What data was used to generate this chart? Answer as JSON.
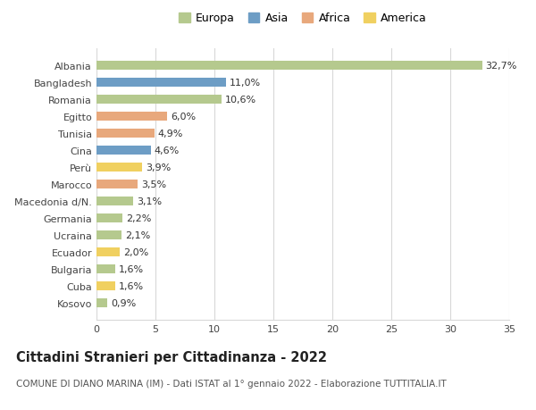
{
  "countries": [
    "Albania",
    "Bangladesh",
    "Romania",
    "Egitto",
    "Tunisia",
    "Cina",
    "Perù",
    "Marocco",
    "Macedonia d/N.",
    "Germania",
    "Ucraina",
    "Ecuador",
    "Bulgaria",
    "Cuba",
    "Kosovo"
  ],
  "values": [
    32.7,
    11.0,
    10.6,
    6.0,
    4.9,
    4.6,
    3.9,
    3.5,
    3.1,
    2.2,
    2.1,
    2.0,
    1.6,
    1.6,
    0.9
  ],
  "labels": [
    "32,7%",
    "11,0%",
    "10,6%",
    "6,0%",
    "4,9%",
    "4,6%",
    "3,9%",
    "3,5%",
    "3,1%",
    "2,2%",
    "2,1%",
    "2,0%",
    "1,6%",
    "1,6%",
    "0,9%"
  ],
  "continents": [
    "Europa",
    "Asia",
    "Europa",
    "Africa",
    "Africa",
    "Asia",
    "America",
    "Africa",
    "Europa",
    "Europa",
    "Europa",
    "America",
    "Europa",
    "America",
    "Europa"
  ],
  "colors": {
    "Europa": "#b5c98e",
    "Asia": "#6d9dc5",
    "Africa": "#e8a87c",
    "America": "#f0d060"
  },
  "legend_order": [
    "Europa",
    "Asia",
    "Africa",
    "America"
  ],
  "title": "Cittadini Stranieri per Cittadinanza - 2022",
  "subtitle": "COMUNE DI DIANO MARINA (IM) - Dati ISTAT al 1° gennaio 2022 - Elaborazione TUTTITALIA.IT",
  "xlim": [
    0,
    35
  ],
  "xticks": [
    0,
    5,
    10,
    15,
    20,
    25,
    30,
    35
  ],
  "bg_color": "#ffffff",
  "grid_color": "#d8d8d8",
  "bar_height": 0.55,
  "label_fontsize": 8,
  "tick_fontsize": 8,
  "title_fontsize": 10.5,
  "subtitle_fontsize": 7.5,
  "legend_fontsize": 9
}
